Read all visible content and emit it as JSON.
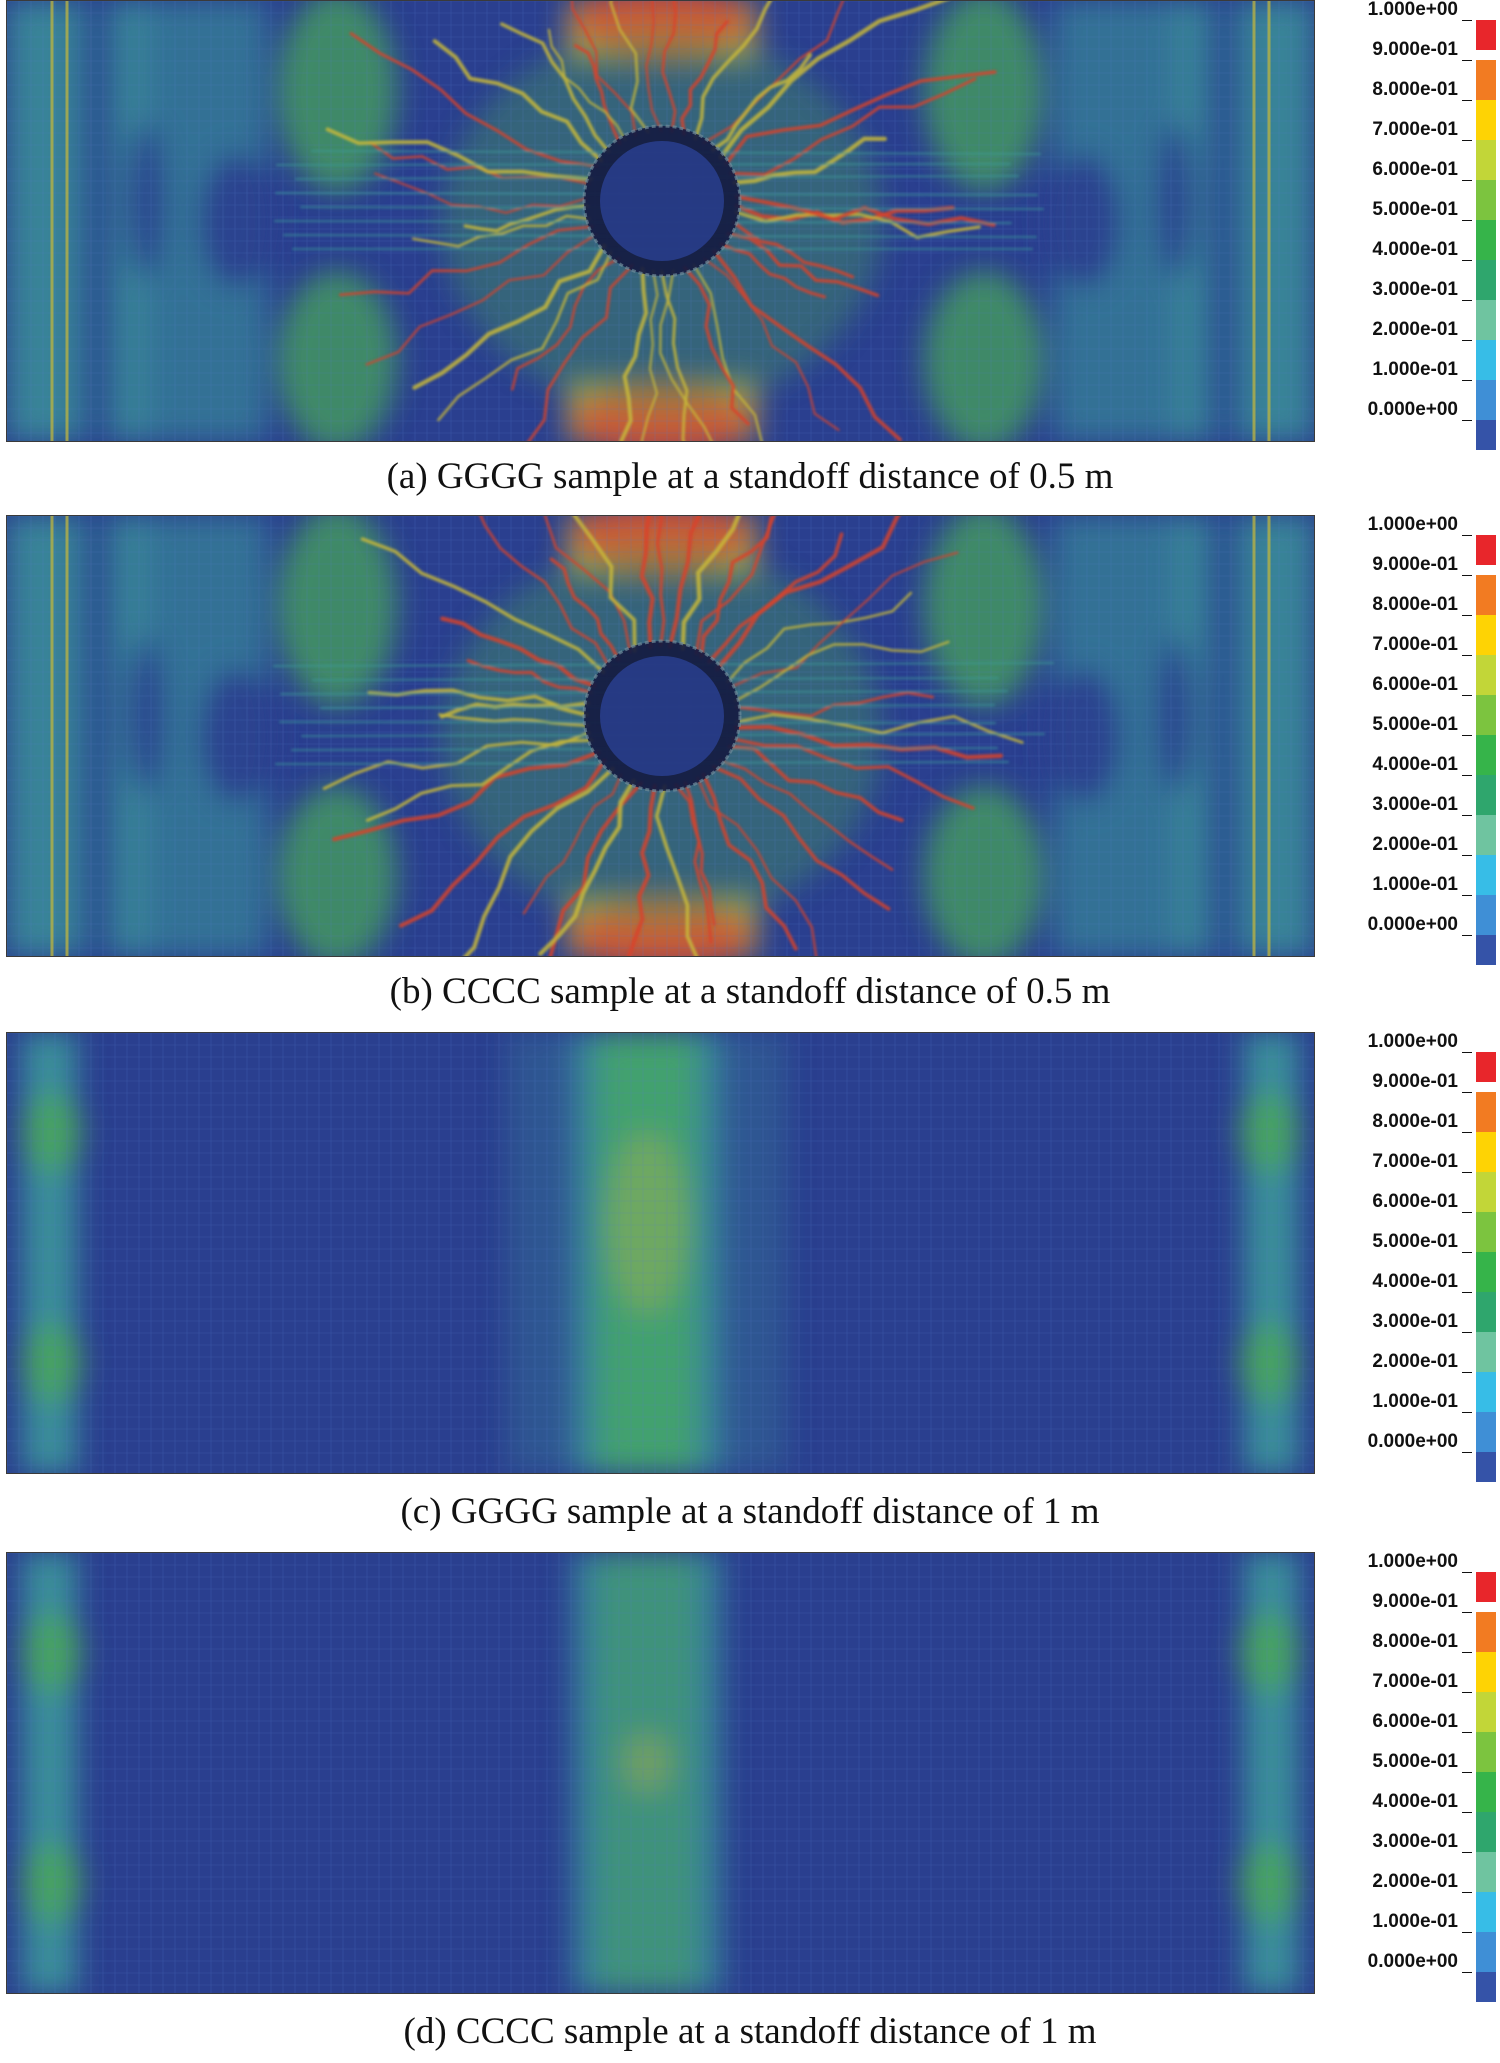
{
  "colorbar": {
    "labels": [
      "1.000e+00",
      "9.000e-01",
      "8.000e-01",
      "7.000e-01",
      "6.000e-01",
      "5.000e-01",
      "4.000e-01",
      "3.000e-01",
      "2.000e-01",
      "1.000e-01",
      "0.000e+00"
    ],
    "colors": [
      "#e8262b",
      "#f27b22",
      "#fed304",
      "#c2d638",
      "#7cc43f",
      "#36b44a",
      "#2fa66d",
      "#6fc4a0",
      "#37bde7",
      "#3f8fd6",
      "#3553a8"
    ]
  },
  "colormap": {
    "background": "#2a3f8f",
    "low": "#3553a8",
    "teal": "#3d9b9b",
    "green": "#4aa957",
    "yellow": "#c8b93a",
    "red": "#d8432c",
    "dark": "#141a40"
  },
  "panels": [
    {
      "id": "a",
      "caption": "(a) GGGG sample at a standoff distance of 0.5 m",
      "standoff_m": 0.5,
      "sample": "GGGG",
      "crater": true
    },
    {
      "id": "b",
      "caption": "(b) CCCC sample at a standoff distance of 0.5 m",
      "standoff_m": 0.5,
      "sample": "CCCC",
      "crater": true
    },
    {
      "id": "c",
      "caption": "(c) GGGG sample at a standoff distance of 1 m",
      "standoff_m": 1,
      "sample": "GGGG",
      "crater": false
    },
    {
      "id": "d",
      "caption": "(d) CCCC sample at a standoff distance of 1 m",
      "standoff_m": 1,
      "sample": "CCCC",
      "crater": false
    }
  ]
}
